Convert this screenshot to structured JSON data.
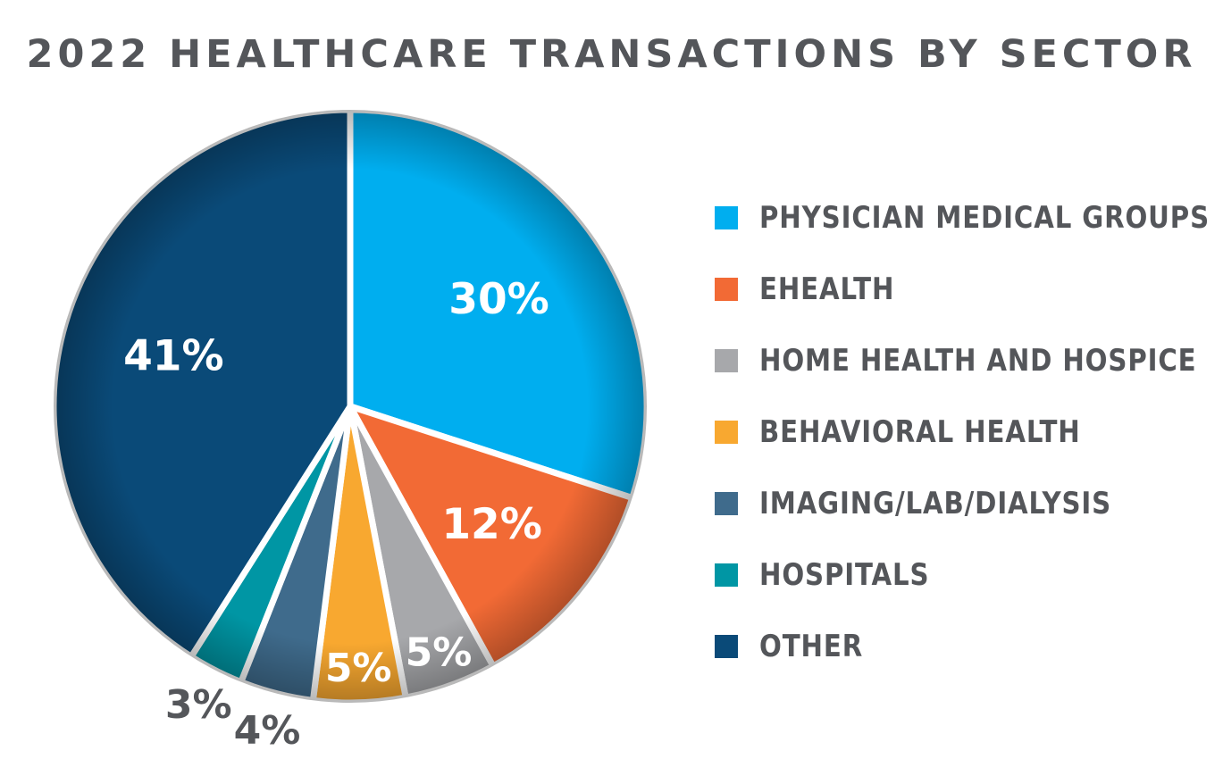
{
  "chart_data": {
    "type": "pie",
    "title": "2022 HEALTHCARE TRANSACTIONS BY SECTOR",
    "legend_position": "right",
    "slices": [
      {
        "label": "PHYSICIAN MEDICAL GROUPS",
        "value": 30,
        "display": "30%",
        "color": "#00aeef",
        "label_style": "inside-light"
      },
      {
        "label": "EHEALTH",
        "value": 12,
        "display": "12%",
        "color": "#f26a35",
        "label_style": "inside-light"
      },
      {
        "label": "HOME HEALTH AND HOSPICE",
        "value": 5,
        "display": "5%",
        "color": "#a7a8ab",
        "label_style": "inside-light"
      },
      {
        "label": "BEHAVIORAL HEALTH",
        "value": 5,
        "display": "5%",
        "color": "#f8a830",
        "label_style": "inside-light"
      },
      {
        "label": "IMAGING/LAB/DIALYSIS",
        "value": 4,
        "display": "4%",
        "color": "#3f6b8c",
        "label_style": "outside-dark"
      },
      {
        "label": "HOSPITALS",
        "value": 3,
        "display": "3%",
        "color": "#0096a4",
        "label_style": "outside-dark"
      },
      {
        "label": "OTHER",
        "value": 41,
        "display": "41%",
        "color": "#0a4a78",
        "label_style": "inside-light"
      }
    ]
  }
}
